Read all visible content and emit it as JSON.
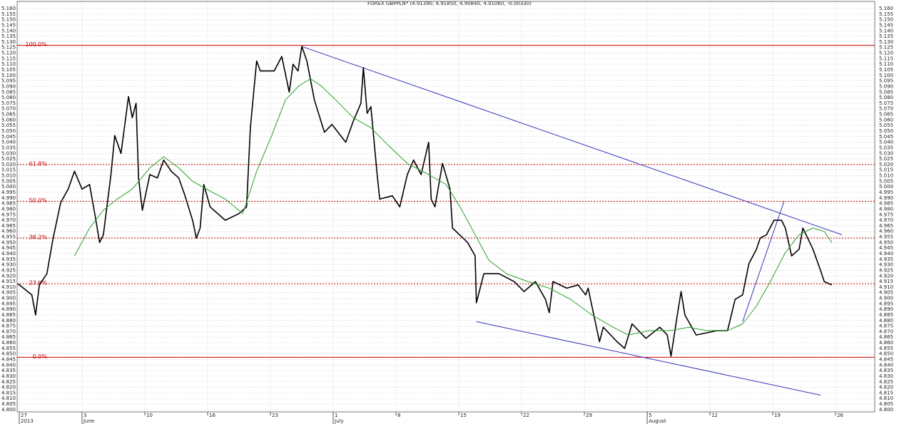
{
  "chart_data": {
    "type": "line",
    "title": "FOREX GBPPLN* (4.91390, 4.91850, 4.90840, 4.91060, -0.00330)",
    "xlim": [
      -0.17,
      68.12
    ],
    "ylim": [
      4.798,
      5.1664
    ],
    "grid": true,
    "xticks": [
      {
        "value": 0,
        "label": "27"
      },
      {
        "value": 5,
        "label": "3"
      },
      {
        "value": 10,
        "label": "10"
      },
      {
        "value": 15,
        "label": "16"
      },
      {
        "value": 20,
        "label": "23"
      },
      {
        "value": 25,
        "label": "1"
      },
      {
        "value": 30,
        "label": "8"
      },
      {
        "value": 35,
        "label": "15"
      },
      {
        "value": 40,
        "label": "22"
      },
      {
        "value": 45,
        "label": "29"
      },
      {
        "value": 50,
        "label": "5"
      },
      {
        "value": 55,
        "label": "12"
      },
      {
        "value": 60,
        "label": "19"
      },
      {
        "value": 65,
        "label": "26"
      }
    ],
    "period_labels": [
      {
        "value": 0,
        "label": "2013"
      },
      {
        "value": 5,
        "label": "June"
      },
      {
        "value": 25,
        "label": "July"
      },
      {
        "value": 50,
        "label": "August"
      }
    ],
    "yticks": [
      {
        "value": 4.8,
        "label": "4.800"
      },
      4.805,
      {
        "value": 4.81,
        "label": "4.810"
      },
      4.815,
      {
        "value": 4.82,
        "label": "4.820"
      },
      4.825,
      {
        "value": 4.83,
        "label": "4.830"
      },
      4.835,
      {
        "value": 4.84,
        "label": "4.840"
      },
      4.845,
      {
        "value": 4.85,
        "label": "4.850"
      },
      4.855,
      {
        "value": 4.86,
        "label": "4.860"
      },
      4.865,
      {
        "value": 4.87,
        "label": "4.870"
      },
      4.875,
      {
        "value": 4.88,
        "label": "4.880"
      },
      4.885,
      {
        "value": 4.89,
        "label": "4.890"
      },
      4.895,
      {
        "value": 4.9,
        "label": "4.900"
      },
      4.905,
      {
        "value": 4.91,
        "label": "4.910"
      },
      4.915,
      {
        "value": 4.92,
        "label": "4.920"
      },
      4.925,
      {
        "value": 4.93,
        "label": "4.930"
      },
      4.935,
      {
        "value": 4.94,
        "label": "4.940"
      },
      4.945,
      {
        "value": 4.95,
        "label": "4.950"
      },
      4.955,
      {
        "value": 4.96,
        "label": "4.960"
      },
      4.965,
      {
        "value": 4.97,
        "label": "4.970"
      },
      4.975,
      {
        "value": 4.98,
        "label": "4.980"
      },
      4.985,
      {
        "value": 4.99,
        "label": "4.990"
      },
      4.995,
      {
        "value": 5.0,
        "label": "5.000"
      },
      5.005,
      {
        "value": 5.01,
        "label": "5.010"
      },
      5.015,
      {
        "value": 5.02,
        "label": "5.020"
      },
      5.025,
      {
        "value": 5.03,
        "label": "5.030"
      },
      5.035,
      {
        "value": 5.04,
        "label": "5.040"
      },
      5.045,
      {
        "value": 5.05,
        "label": "5.050"
      },
      5.055,
      {
        "value": 5.06,
        "label": "5.060"
      },
      5.065,
      {
        "value": 5.07,
        "label": "5.070"
      },
      5.075,
      {
        "value": 5.08,
        "label": "5.080"
      },
      5.085,
      {
        "value": 5.09,
        "label": "5.090"
      },
      5.095,
      {
        "value": 5.1,
        "label": "5.100"
      },
      5.105,
      {
        "value": 5.11,
        "label": "5.110"
      },
      5.115,
      {
        "value": 5.12,
        "label": "5.120"
      },
      5.125,
      {
        "value": 5.13,
        "label": "5.130"
      },
      5.135,
      {
        "value": 5.14,
        "label": "5.140"
      },
      5.145,
      {
        "value": 5.15,
        "label": "5.150"
      },
      5.155,
      {
        "value": 5.16,
        "label": "5.160"
      }
    ],
    "series": [
      {
        "color": "#000000",
        "x": [
          -0.1,
          1.0,
          1.3,
          1.6,
          2.2,
          2.7,
          3.3,
          3.9,
          4.4,
          5.0,
          5.6,
          6.1,
          6.4,
          6.7,
          7.3,
          7.6,
          8.1,
          8.7,
          9.0,
          9.3,
          9.5,
          9.8,
          10.4,
          11.0,
          11.5,
          12.1,
          12.7,
          13.2,
          13.8,
          14.1,
          14.4,
          14.7,
          15.2,
          16.4,
          17.5,
          18.1,
          18.4,
          18.9,
          19.2,
          20.3,
          20.9,
          21.5,
          21.8,
          22.2,
          22.5,
          22.9,
          23.5,
          24.3,
          24.9,
          26.0,
          26.6,
          27.2,
          27.4,
          27.7,
          28.0,
          28.5,
          28.7,
          29.7,
          30.3,
          30.9,
          31.4,
          32.0,
          32.6,
          32.8,
          33.1,
          33.7,
          34.3,
          34.5,
          35.7,
          36.3,
          36.4,
          37.0,
          38.2,
          39.4,
          40.2,
          41.1,
          41.9,
          42.2,
          42.5,
          43.6,
          44.5,
          45.1,
          45.3,
          45.9,
          46.2,
          46.5,
          47.6,
          48.2,
          48.8,
          49.9,
          51.0,
          51.6,
          51.9,
          52.4,
          52.7,
          53.0,
          53.9,
          55.6,
          56.4,
          57.0,
          57.6,
          58.1,
          58.7,
          59.0,
          59.5,
          60.1,
          60.7,
          61.0,
          61.5,
          62.1,
          62.4,
          63.2,
          63.8,
          64.1,
          64.7
        ],
        "values": [
          4.913,
          4.903,
          4.885,
          4.912,
          4.922,
          4.954,
          4.986,
          4.998,
          5.014,
          4.998,
          5.002,
          4.97,
          4.95,
          4.957,
          5.011,
          5.046,
          5.03,
          5.081,
          5.062,
          5.075,
          5.008,
          4.979,
          5.011,
          5.008,
          5.024,
          5.014,
          5.008,
          4.992,
          4.97,
          4.954,
          4.963,
          5.002,
          4.982,
          4.97,
          4.976,
          4.982,
          5.053,
          5.113,
          5.104,
          5.104,
          5.117,
          5.085,
          5.11,
          5.104,
          5.126,
          5.113,
          5.078,
          5.049,
          5.056,
          5.04,
          5.059,
          5.075,
          5.107,
          5.066,
          5.072,
          5.011,
          4.989,
          4.992,
          4.982,
          5.011,
          5.024,
          5.011,
          5.04,
          4.989,
          4.982,
          5.021,
          4.998,
          4.963,
          4.95,
          4.938,
          4.896,
          4.922,
          4.922,
          4.915,
          4.906,
          4.915,
          4.899,
          4.887,
          4.915,
          4.909,
          4.912,
          4.903,
          4.909,
          4.877,
          4.861,
          4.874,
          4.861,
          4.855,
          4.877,
          4.864,
          4.874,
          4.867,
          4.848,
          4.885,
          4.906,
          4.885,
          4.867,
          4.871,
          4.871,
          4.899,
          4.903,
          4.931,
          4.944,
          4.954,
          4.957,
          4.97,
          4.97,
          4.963,
          4.938,
          4.944,
          4.963,
          4.944,
          4.925,
          4.915,
          4.912
        ]
      },
      {
        "color": "#2ca02c",
        "x": [
          4.4,
          5.6,
          6.7,
          7.8,
          9.0,
          10.4,
          11.5,
          12.7,
          13.8,
          14.9,
          16.4,
          17.8,
          18.9,
          20.1,
          21.2,
          22.3,
          23.2,
          24.0,
          25.2,
          26.6,
          28.0,
          29.4,
          30.9,
          32.6,
          34.0,
          35.1,
          36.3,
          37.4,
          38.8,
          40.5,
          42.2,
          43.9,
          45.6,
          47.3,
          48.5,
          50.2,
          51.9,
          53.3,
          54.7,
          56.4,
          57.6,
          58.7,
          59.8,
          61.0,
          62.1,
          63.2,
          64.1,
          64.7
        ],
        "values": [
          4.938,
          4.963,
          4.979,
          4.989,
          4.998,
          5.017,
          5.027,
          5.017,
          5.005,
          4.998,
          4.989,
          4.976,
          5.014,
          5.046,
          5.078,
          5.091,
          5.097,
          5.091,
          5.078,
          5.062,
          5.053,
          5.037,
          5.021,
          5.011,
          5.002,
          4.982,
          4.957,
          4.934,
          4.922,
          4.915,
          4.909,
          4.899,
          4.885,
          4.874,
          4.867,
          4.871,
          4.871,
          4.874,
          4.871,
          4.871,
          4.877,
          4.893,
          4.915,
          4.941,
          4.957,
          4.963,
          4.96,
          4.95
        ]
      }
    ],
    "trendlines": [
      {
        "color": "#3333bb",
        "x": [
          22.5,
          65.5
        ],
        "values": [
          5.126,
          4.957
        ]
      },
      {
        "color": "#3333bb",
        "x": [
          36.4,
          63.8
        ],
        "values": [
          4.879,
          4.813
        ]
      },
      {
        "color": "#3333bb",
        "x": [
          57.6,
          60.9
        ],
        "values": [
          4.879,
          4.987
        ]
      }
    ],
    "fib_color": "#cc0000",
    "fib_levels": [
      {
        "label": "100.0%",
        "value": 5.127,
        "style": "solid"
      },
      {
        "label": "61.8%",
        "value": 5.02,
        "style": "dotted"
      },
      {
        "label": "50.0%",
        "value": 4.987,
        "style": "dotted"
      },
      {
        "label": "38.2%",
        "value": 4.954,
        "style": "dotted"
      },
      {
        "label": "23.6%",
        "value": 4.913,
        "style": "dotted"
      },
      {
        "label": "0.0%",
        "value": 4.847,
        "style": "solid"
      }
    ]
  }
}
